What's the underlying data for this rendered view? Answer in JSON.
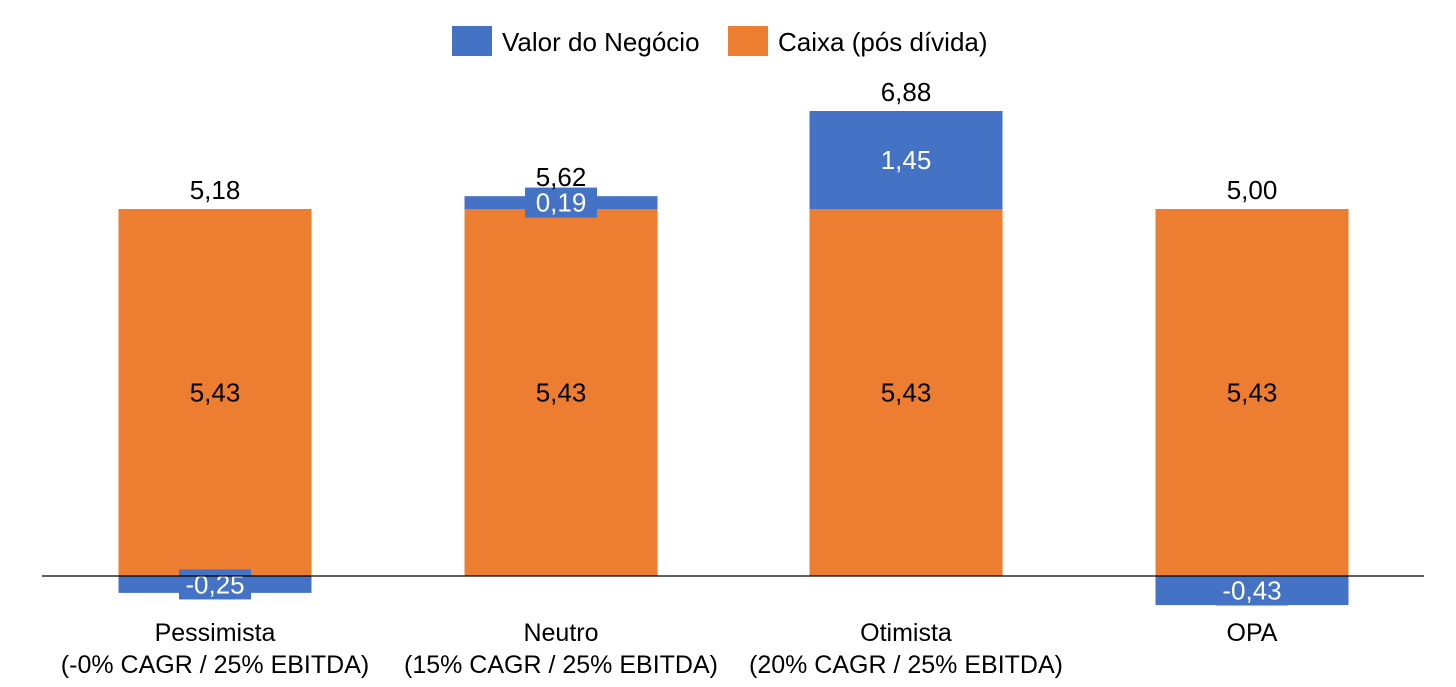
{
  "chart_data": {
    "type": "bar",
    "stacked": true,
    "categories": [
      [
        "Pessimista",
        "(-0% CAGR / 25% EBITDA)"
      ],
      [
        "Neutro",
        "(15% CAGR / 25% EBITDA)"
      ],
      [
        "Otimista",
        "(20% CAGR / 25% EBITDA)"
      ],
      [
        "OPA",
        ""
      ]
    ],
    "series": [
      {
        "name": "Valor do Negócio",
        "color": "#4472C4",
        "values": [
          -0.25,
          0.19,
          1.45,
          -0.43
        ],
        "labels": [
          "-0,25",
          "0,19",
          "1,45",
          "-0,43"
        ]
      },
      {
        "name": "Caixa (pós dívida)",
        "color": "#ED7D31",
        "values": [
          5.43,
          5.43,
          5.43,
          5.43
        ],
        "labels": [
          "5,43",
          "5,43",
          "5,43",
          "5,43"
        ]
      }
    ],
    "totals": [
      5.18,
      5.62,
      6.88,
      5.0
    ],
    "total_labels": [
      "5,18",
      "5,62",
      "6,88",
      "5,00"
    ],
    "ylim": [
      -0.43,
      6.88
    ],
    "legend": "top",
    "grid": false
  }
}
